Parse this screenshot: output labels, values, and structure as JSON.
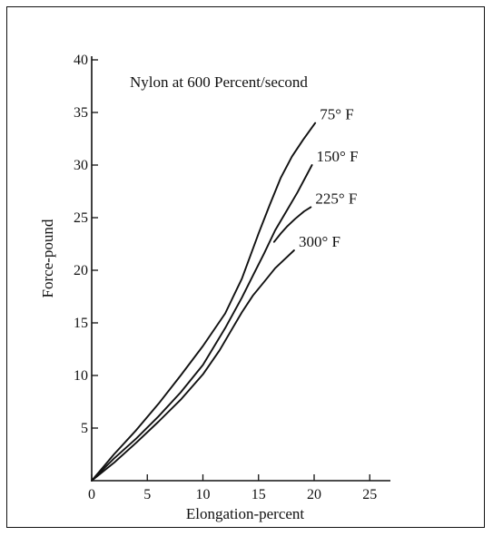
{
  "chart_data": {
    "type": "line",
    "title": "Nylon at 600  Percent/second",
    "xlabel": "Elongation-percent",
    "ylabel": "Force-pound",
    "xlim": [
      0,
      26
    ],
    "ylim": [
      0,
      40
    ],
    "x_ticks": [
      0,
      5,
      10,
      15,
      20,
      25
    ],
    "y_ticks": [
      5,
      10,
      15,
      20,
      25,
      30,
      35,
      40
    ],
    "grid": false,
    "series": [
      {
        "name": "75° F",
        "x": [
          0,
          2,
          4,
          6,
          8,
          10,
          12,
          13.5,
          15,
          16,
          17,
          18,
          19,
          20.1
        ],
        "y": [
          0,
          2.5,
          4.8,
          7.3,
          10,
          12.8,
          15.9,
          19.2,
          23.5,
          26.2,
          28.8,
          30.8,
          32.4,
          34
        ]
      },
      {
        "name": "150° F",
        "x": [
          0,
          2,
          4,
          6,
          8,
          10,
          12,
          13.5,
          14.5,
          15.5,
          16.5,
          17.5,
          18.5,
          19.8
        ],
        "y": [
          0,
          2.1,
          4,
          6.1,
          8.4,
          11,
          14.5,
          17.4,
          19.5,
          21.6,
          23.8,
          25.6,
          27.4,
          30
        ]
      },
      {
        "name": "225° F",
        "x": [
          16.4,
          17,
          17.6,
          18.3,
          19.1,
          19.7
        ],
        "y": [
          22.7,
          23.5,
          24.2,
          24.9,
          25.6,
          26
        ]
      },
      {
        "name": "300° F",
        "x": [
          0,
          2,
          4,
          6,
          8,
          10,
          11.5,
          12.5,
          13.5,
          14.5,
          15.5,
          16.5,
          17.5,
          18.2
        ],
        "y": [
          0,
          1.7,
          3.6,
          5.6,
          7.7,
          10.1,
          12.4,
          14.2,
          16,
          17.6,
          18.9,
          20.2,
          21.2,
          21.9
        ]
      }
    ]
  }
}
